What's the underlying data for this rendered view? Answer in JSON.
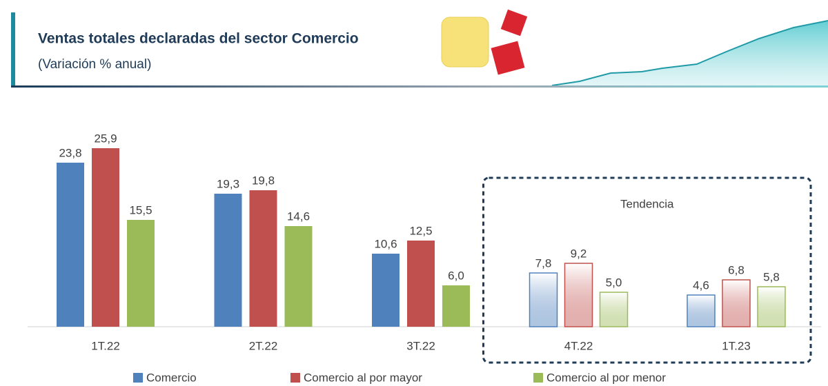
{
  "header": {
    "title": "Ventas totales declaradas del sector Comercio",
    "subtitle": "(Variación % anual)"
  },
  "chart_data": {
    "type": "bar",
    "categories": [
      "1T.22",
      "2T.22",
      "3T.22",
      "4T.22",
      "1T.23"
    ],
    "series": [
      {
        "name": "Comercio",
        "color": "#4f81bd",
        "values": [
          23.8,
          19.3,
          10.6,
          7.8,
          4.6
        ],
        "value_labels": [
          "23,8",
          "19,3",
          "10,6",
          "7,8",
          "4,6"
        ]
      },
      {
        "name": "Comercio al por mayor",
        "color": "#c0504d",
        "values": [
          25.9,
          19.8,
          12.5,
          9.2,
          6.8
        ],
        "value_labels": [
          "25,9",
          "19,8",
          "12,5",
          "9,2",
          "6,8"
        ]
      },
      {
        "name": "Comercio al por menor",
        "color": "#9bbb59",
        "values": [
          15.5,
          14.6,
          6.0,
          5.0,
          5.8
        ],
        "value_labels": [
          "15,5",
          "14,6",
          "6,0",
          "5,0",
          "5,8"
        ]
      }
    ],
    "highlight": {
      "label": "Tendencia",
      "categories": [
        3,
        4
      ]
    },
    "legend": "bottom"
  }
}
